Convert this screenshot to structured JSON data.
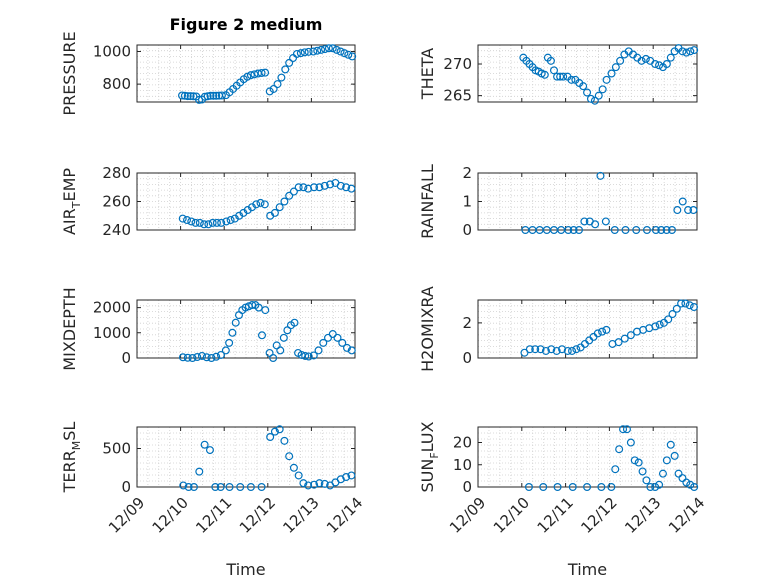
{
  "figure": {
    "title": "Figure 2 medium",
    "marker_color": "#0072BD"
  },
  "chart_data": [
    {
      "type": "scatter",
      "title": "Figure 2 medium",
      "ylabel": "PRESSURE",
      "xlabel": "",
      "xlim": [
        "12/09",
        "12/14"
      ],
      "ylim": [
        690,
        1040
      ],
      "yticks": [
        800,
        1000
      ],
      "ytick_labels": [
        "800",
        "1000"
      ],
      "grid": "dotted",
      "points": [
        [
          "12/10",
          730
        ],
        [
          "12/10",
          728
        ],
        [
          "12/10",
          726
        ],
        [
          "12/10",
          726
        ],
        [
          "12/10",
          725
        ],
        [
          "12/10",
          724
        ],
        [
          "12/10",
          703
        ],
        [
          "12/10",
          705
        ],
        [
          "12/10",
          722
        ],
        [
          "12/10",
          725
        ],
        [
          "12/10",
          728
        ],
        [
          "12/10",
          728
        ],
        [
          "12/10",
          728
        ],
        [
          "12/10",
          729
        ],
        [
          "12/10",
          730
        ],
        [
          "12/11",
          732
        ],
        [
          "12/11",
          750
        ],
        [
          "12/11",
          770
        ],
        [
          "12/11",
          790
        ],
        [
          "12/11",
          810
        ],
        [
          "12/11",
          830
        ],
        [
          "12/11",
          845
        ],
        [
          "12/11",
          855
        ],
        [
          "12/11",
          860
        ],
        [
          "12/11",
          865
        ],
        [
          "12/11",
          868
        ],
        [
          "12/11",
          870
        ],
        [
          "12/12",
          755
        ],
        [
          "12/12",
          770
        ],
        [
          "12/12",
          800
        ],
        [
          "12/12",
          840
        ],
        [
          "12/12",
          890
        ],
        [
          "12/12",
          930
        ],
        [
          "12/12",
          960
        ],
        [
          "12/12",
          985
        ],
        [
          "12/12",
          990
        ],
        [
          "12/12",
          995
        ],
        [
          "12/12",
          998
        ],
        [
          "12/13",
          1000
        ],
        [
          "12/13",
          1005
        ],
        [
          "12/13",
          1010
        ],
        [
          "12/13",
          1015
        ],
        [
          "12/13",
          1020
        ],
        [
          "12/13",
          1020
        ],
        [
          "12/13",
          1010
        ],
        [
          "12/13",
          1000
        ],
        [
          "12/13",
          990
        ],
        [
          "12/13",
          980
        ],
        [
          "12/13",
          970
        ]
      ]
    },
    {
      "type": "scatter",
      "title": "",
      "ylabel": "THETA",
      "xlabel": "",
      "xlim": [
        "12/09",
        "12/14"
      ],
      "ylim": [
        264,
        273
      ],
      "yticks": [
        265,
        270
      ],
      "ytick_labels": [
        "265",
        "270"
      ],
      "grid": "dotted",
      "points": [
        [
          "12/10",
          271
        ],
        [
          "12/10",
          270.5
        ],
        [
          "12/10",
          270
        ],
        [
          "12/10",
          269.5
        ],
        [
          "12/10",
          269
        ],
        [
          "12/10",
          268.8
        ],
        [
          "12/10",
          268.5
        ],
        [
          "12/10",
          268.3
        ],
        [
          "12/10",
          271
        ],
        [
          "12/10",
          270.5
        ],
        [
          "12/10",
          269
        ],
        [
          "12/10",
          268
        ],
        [
          "12/10",
          268
        ],
        [
          "12/10",
          268
        ],
        [
          "12/11",
          268
        ],
        [
          "12/11",
          267.5
        ],
        [
          "12/11",
          267.5
        ],
        [
          "12/11",
          267
        ],
        [
          "12/11",
          266.5
        ],
        [
          "12/11",
          265.5
        ],
        [
          "12/11",
          264.5
        ],
        [
          "12/11",
          264.2
        ],
        [
          "12/11",
          265
        ],
        [
          "12/11",
          266
        ],
        [
          "12/11",
          267.5
        ],
        [
          "12/12",
          268.5
        ],
        [
          "12/12",
          269.5
        ],
        [
          "12/12",
          270.5
        ],
        [
          "12/12",
          271.5
        ],
        [
          "12/12",
          272
        ],
        [
          "12/12",
          271.5
        ],
        [
          "12/12",
          271
        ],
        [
          "12/12",
          270.5
        ],
        [
          "12/12",
          270.8
        ],
        [
          "12/12",
          270.5
        ],
        [
          "12/13",
          270
        ],
        [
          "12/13",
          269.8
        ],
        [
          "12/13",
          269.5
        ],
        [
          "12/13",
          270
        ],
        [
          "12/13",
          271
        ],
        [
          "12/13",
          272
        ],
        [
          "12/13",
          272.5
        ],
        [
          "12/13",
          272
        ],
        [
          "12/13",
          271.8
        ],
        [
          "12/13",
          272
        ],
        [
          "12/13",
          272.2
        ]
      ]
    },
    {
      "type": "scatter",
      "title": "",
      "ylabel": "AIR_TEMP",
      "xlabel": "",
      "xlim": [
        "12/09",
        "12/14"
      ],
      "ylim": [
        240,
        280
      ],
      "yticks": [
        240,
        260,
        280
      ],
      "ytick_labels": [
        "240",
        "260",
        "280"
      ],
      "grid": "dotted",
      "points": [
        [
          "12/10",
          248
        ],
        [
          "12/10",
          247
        ],
        [
          "12/10",
          246
        ],
        [
          "12/10",
          245
        ],
        [
          "12/10",
          245
        ],
        [
          "12/10",
          244
        ],
        [
          "12/10",
          244
        ],
        [
          "12/10",
          245
        ],
        [
          "12/10",
          245
        ],
        [
          "12/10",
          245
        ],
        [
          "12/11",
          246
        ],
        [
          "12/11",
          247
        ],
        [
          "12/11",
          248
        ],
        [
          "12/11",
          250
        ],
        [
          "12/11",
          252
        ],
        [
          "12/11",
          254
        ],
        [
          "12/11",
          256
        ],
        [
          "12/11",
          258
        ],
        [
          "12/11",
          259
        ],
        [
          "12/11",
          258
        ],
        [
          "12/12",
          250
        ],
        [
          "12/12",
          252
        ],
        [
          "12/12",
          256
        ],
        [
          "12/12",
          260
        ],
        [
          "12/12",
          264
        ],
        [
          "12/12",
          267
        ],
        [
          "12/12",
          270
        ],
        [
          "12/12",
          270
        ],
        [
          "12/12",
          269
        ],
        [
          "12/13",
          270
        ],
        [
          "12/13",
          270
        ],
        [
          "12/13",
          271
        ],
        [
          "12/13",
          272
        ],
        [
          "12/13",
          273
        ],
        [
          "12/13",
          271
        ],
        [
          "12/13",
          270
        ],
        [
          "12/13",
          269
        ]
      ]
    },
    {
      "type": "scatter",
      "title": "",
      "ylabel": "RAINFALL",
      "xlabel": "",
      "xlim": [
        "12/09",
        "12/14"
      ],
      "ylim": [
        0,
        2
      ],
      "yticks": [
        0,
        1,
        2
      ],
      "ytick_labels": [
        "0",
        "1",
        "2"
      ],
      "grid": "dotted",
      "points": [
        [
          "12/10",
          0
        ],
        [
          "12/10",
          0
        ],
        [
          "12/10",
          0
        ],
        [
          "12/10",
          0
        ],
        [
          "12/10",
          0
        ],
        [
          "12/10",
          0
        ],
        [
          "12/11",
          0
        ],
        [
          "12/11",
          0
        ],
        [
          "12/11",
          0
        ],
        [
          "12/11",
          0.3
        ],
        [
          "12/11",
          0.3
        ],
        [
          "12/11",
          0.2
        ],
        [
          "12/11",
          1.9
        ],
        [
          "12/11",
          0.3
        ],
        [
          "12/12",
          0
        ],
        [
          "12/12",
          0
        ],
        [
          "12/12",
          0
        ],
        [
          "12/12",
          0
        ],
        [
          "12/13",
          0
        ],
        [
          "12/13",
          0
        ],
        [
          "12/13",
          0
        ],
        [
          "12/13",
          0
        ],
        [
          "12/13",
          0.7
        ],
        [
          "12/13",
          1.0
        ],
        [
          "12/13",
          0.7
        ],
        [
          "12/13",
          0.7
        ]
      ]
    },
    {
      "type": "scatter",
      "title": "",
      "ylabel": "MIXDEPTH",
      "xlabel": "",
      "xlim": [
        "12/09",
        "12/14"
      ],
      "ylim": [
        0,
        2300
      ],
      "yticks": [
        0,
        1000,
        2000
      ],
      "ytick_labels": [
        "0",
        "1000",
        "2000"
      ],
      "grid": "dotted",
      "points": [
        [
          "12/10",
          30
        ],
        [
          "12/10",
          10
        ],
        [
          "12/10",
          0
        ],
        [
          "12/10",
          40
        ],
        [
          "12/10",
          80
        ],
        [
          "12/10",
          30
        ],
        [
          "12/10",
          0
        ],
        [
          "12/10",
          50
        ],
        [
          "12/10",
          120
        ],
        [
          "12/11",
          300
        ],
        [
          "12/11",
          600
        ],
        [
          "12/11",
          1000
        ],
        [
          "12/11",
          1400
        ],
        [
          "12/11",
          1700
        ],
        [
          "12/11",
          1900
        ],
        [
          "12/11",
          2000
        ],
        [
          "12/11",
          2050
        ],
        [
          "12/11",
          2100
        ],
        [
          "12/11",
          2100
        ],
        [
          "12/11",
          2000
        ],
        [
          "12/11",
          900
        ],
        [
          "12/11",
          1900
        ],
        [
          "12/12",
          200
        ],
        [
          "12/12",
          0
        ],
        [
          "12/12",
          500
        ],
        [
          "12/12",
          300
        ],
        [
          "12/12",
          800
        ],
        [
          "12/12",
          1100
        ],
        [
          "12/12",
          1300
        ],
        [
          "12/12",
          1400
        ],
        [
          "12/12",
          200
        ],
        [
          "12/12",
          120
        ],
        [
          "12/12",
          80
        ],
        [
          "12/12",
          60
        ],
        [
          "12/13",
          100
        ],
        [
          "12/13",
          300
        ],
        [
          "12/13",
          600
        ],
        [
          "12/13",
          800
        ],
        [
          "12/13",
          950
        ],
        [
          "12/13",
          800
        ],
        [
          "12/13",
          600
        ],
        [
          "12/13",
          400
        ],
        [
          "12/13",
          300
        ]
      ]
    },
    {
      "type": "scatter",
      "title": "",
      "ylabel": "H2OMIXRA",
      "xlabel": "",
      "xlim": [
        "12/09",
        "12/14"
      ],
      "ylim": [
        0,
        3.3
      ],
      "yticks": [
        0,
        2
      ],
      "ytick_labels": [
        "0",
        "2"
      ],
      "grid": "dotted",
      "points": [
        [
          "12/10",
          0.3
        ],
        [
          "12/10",
          0.5
        ],
        [
          "12/10",
          0.5
        ],
        [
          "12/10",
          0.5
        ],
        [
          "12/10",
          0.4
        ],
        [
          "12/10",
          0.5
        ],
        [
          "12/10",
          0.4
        ],
        [
          "12/10",
          0.5
        ],
        [
          "12/11",
          0.4
        ],
        [
          "12/11",
          0.4
        ],
        [
          "12/11",
          0.5
        ],
        [
          "12/11",
          0.6
        ],
        [
          "12/11",
          0.8
        ],
        [
          "12/11",
          1.0
        ],
        [
          "12/11",
          1.2
        ],
        [
          "12/11",
          1.4
        ],
        [
          "12/11",
          1.5
        ],
        [
          "12/11",
          1.6
        ],
        [
          "12/12",
          0.8
        ],
        [
          "12/12",
          0.9
        ],
        [
          "12/12",
          1.1
        ],
        [
          "12/12",
          1.3
        ],
        [
          "12/12",
          1.5
        ],
        [
          "12/12",
          1.6
        ],
        [
          "12/12",
          1.7
        ],
        [
          "12/13",
          1.8
        ],
        [
          "12/13",
          1.9
        ],
        [
          "12/13",
          2.0
        ],
        [
          "12/13",
          2.2
        ],
        [
          "12/13",
          2.5
        ],
        [
          "12/13",
          2.8
        ],
        [
          "12/13",
          3.1
        ],
        [
          "12/13",
          3.1
        ],
        [
          "12/13",
          3.0
        ],
        [
          "12/13",
          2.9
        ]
      ]
    },
    {
      "type": "scatter",
      "title": "",
      "ylabel": "TERR_MSL",
      "xlabel": "Time",
      "xlim": [
        "12/09",
        "12/14"
      ],
      "ylim": [
        0,
        780
      ],
      "yticks": [
        0,
        500
      ],
      "ytick_labels": [
        "0",
        "500"
      ],
      "grid": "dotted",
      "xticks": [
        "12/09",
        "12/10",
        "12/11",
        "12/12",
        "12/13",
        "12/14"
      ],
      "points": [
        [
          "12/10",
          20
        ],
        [
          "12/10",
          0
        ],
        [
          "12/10",
          0
        ],
        [
          "12/10",
          200
        ],
        [
          "12/10",
          550
        ],
        [
          "12/10",
          480
        ],
        [
          "12/10",
          0
        ],
        [
          "12/10",
          0
        ],
        [
          "12/11",
          0
        ],
        [
          "12/11",
          0
        ],
        [
          "12/11",
          0
        ],
        [
          "12/11",
          0
        ],
        [
          "12/12",
          650
        ],
        [
          "12/12",
          720
        ],
        [
          "12/12",
          750
        ],
        [
          "12/12",
          600
        ],
        [
          "12/12",
          400
        ],
        [
          "12/12",
          250
        ],
        [
          "12/12",
          150
        ],
        [
          "12/12",
          50
        ],
        [
          "12/12",
          20
        ],
        [
          "12/13",
          30
        ],
        [
          "12/13",
          50
        ],
        [
          "12/13",
          40
        ],
        [
          "12/13",
          20
        ],
        [
          "12/13",
          60
        ],
        [
          "12/13",
          100
        ],
        [
          "12/13",
          130
        ],
        [
          "12/13",
          150
        ]
      ]
    },
    {
      "type": "scatter",
      "title": "",
      "ylabel": "SUN_FLUX",
      "xlabel": "Time",
      "xlim": [
        "12/09",
        "12/14"
      ],
      "ylim": [
        0,
        27
      ],
      "yticks": [
        0,
        10,
        20
      ],
      "ytick_labels": [
        "0",
        "10",
        "20"
      ],
      "grid": "dotted",
      "xticks": [
        "12/09",
        "12/10",
        "12/11",
        "12/12",
        "12/13",
        "12/14"
      ],
      "points": [
        [
          "12/10",
          0
        ],
        [
          "12/10",
          0
        ],
        [
          "12/10",
          0
        ],
        [
          "12/11",
          0
        ],
        [
          "12/11",
          0
        ],
        [
          "12/11",
          0
        ],
        [
          "12/12",
          0
        ],
        [
          "12/12",
          8
        ],
        [
          "12/12",
          17
        ],
        [
          "12/12",
          26
        ],
        [
          "12/12",
          26
        ],
        [
          "12/12",
          20
        ],
        [
          "12/12",
          12
        ],
        [
          "12/12",
          11
        ],
        [
          "12/12",
          7
        ],
        [
          "12/12",
          3
        ],
        [
          "12/12",
          0
        ],
        [
          "12/13",
          0
        ],
        [
          "12/13",
          1
        ],
        [
          "12/13",
          6
        ],
        [
          "12/13",
          12
        ],
        [
          "12/13",
          19
        ],
        [
          "12/13",
          14
        ],
        [
          "12/13",
          6
        ],
        [
          "12/13",
          4
        ],
        [
          "12/13",
          2
        ],
        [
          "12/13",
          1
        ],
        [
          "12/13",
          0
        ]
      ]
    }
  ]
}
